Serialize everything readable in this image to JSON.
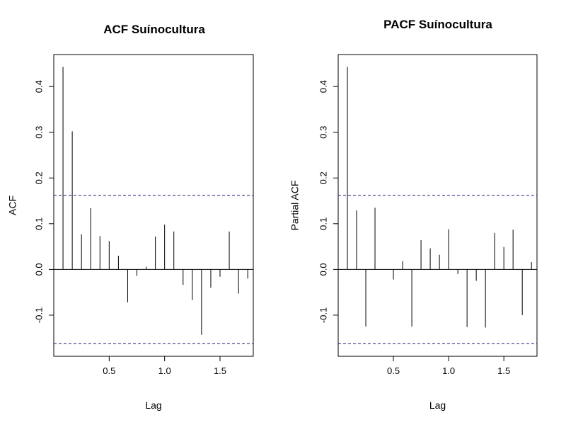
{
  "chart_data": [
    {
      "type": "bar",
      "title": "ACF Suínocultura",
      "xlabel": "Lag",
      "ylabel": "ACF",
      "xlim": [
        0.0,
        1.8
      ],
      "ylim": [
        -0.19,
        0.47
      ],
      "x_ticks": [
        0.5,
        1.0,
        1.5
      ],
      "y_ticks": [
        -0.1,
        0.0,
        0.1,
        0.2,
        0.3,
        0.4
      ],
      "confidence_band": [
        0.162,
        -0.162
      ],
      "grid": false,
      "x": [
        0.0833,
        0.1667,
        0.25,
        0.3333,
        0.4167,
        0.5,
        0.5833,
        0.6667,
        0.75,
        0.8333,
        0.9167,
        1.0,
        1.0833,
        1.1667,
        1.25,
        1.3333,
        1.4167,
        1.5,
        1.5833,
        1.6667,
        1.75
      ],
      "values": [
        0.443,
        0.302,
        0.077,
        0.134,
        0.073,
        0.062,
        0.03,
        -0.072,
        -0.014,
        0.006,
        0.072,
        0.098,
        0.083,
        -0.034,
        -0.067,
        -0.143,
        -0.04,
        -0.016,
        0.083,
        -0.053,
        -0.02
      ]
    },
    {
      "type": "bar",
      "title": "PACF Suínocultura",
      "xlabel": "Lag",
      "ylabel": "Partial ACF",
      "xlim": [
        0.0,
        1.8
      ],
      "ylim": [
        -0.19,
        0.47
      ],
      "x_ticks": [
        0.5,
        1.0,
        1.5
      ],
      "y_ticks": [
        -0.1,
        0.0,
        0.1,
        0.2,
        0.3,
        0.4
      ],
      "confidence_band": [
        0.162,
        -0.162
      ],
      "grid": false,
      "x": [
        0.0833,
        0.1667,
        0.25,
        0.3333,
        0.4167,
        0.5,
        0.5833,
        0.6667,
        0.75,
        0.8333,
        0.9167,
        1.0,
        1.0833,
        1.1667,
        1.25,
        1.3333,
        1.4167,
        1.5,
        1.5833,
        1.6667,
        1.75
      ],
      "values": [
        0.443,
        0.129,
        -0.125,
        0.135,
        0.0,
        -0.022,
        0.018,
        -0.125,
        0.064,
        0.046,
        0.032,
        0.088,
        -0.01,
        -0.126,
        -0.025,
        -0.127,
        0.08,
        0.049,
        0.087,
        -0.1,
        0.016
      ]
    }
  ],
  "colors": {
    "spike": "#000000",
    "band": "#1a1a7a",
    "axis": "#000000"
  }
}
